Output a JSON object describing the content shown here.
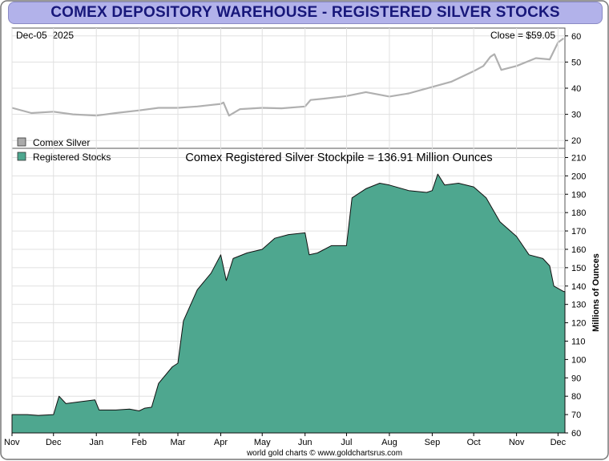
{
  "title": "COMEX DEPOSITORY WAREHOUSE - REGISTERED SILVER STOCKS",
  "footer": "world gold charts © www.goldchartsrus.com",
  "colors": {
    "banner_bg": "#b2b2ea",
    "banner_text": "#17177a",
    "silver_line": "#b0b0b0",
    "stocks_fill": "#4ea78f",
    "stocks_edge": "#111111",
    "grid": "#e0e0e0"
  },
  "chart_data": [
    {
      "type": "line",
      "date_label": "Dec-05  2025",
      "close_label": "Close = $59.05",
      "legend_label": "Comex Silver",
      "ylim": [
        17,
        63
      ],
      "yticks": [
        20,
        30,
        40,
        50,
        60
      ],
      "grid": true,
      "x": [
        "2024-11-01",
        "2024-11-15",
        "2024-12-01",
        "2024-12-15",
        "2025-01-01",
        "2025-01-15",
        "2025-02-01",
        "2025-02-15",
        "2025-03-01",
        "2025-03-15",
        "2025-04-01",
        "2025-04-03",
        "2025-04-07",
        "2025-04-15",
        "2025-05-01",
        "2025-05-15",
        "2025-06-01",
        "2025-06-05",
        "2025-06-15",
        "2025-07-01",
        "2025-07-15",
        "2025-08-01",
        "2025-08-15",
        "2025-09-01",
        "2025-09-15",
        "2025-10-01",
        "2025-10-08",
        "2025-10-13",
        "2025-10-16",
        "2025-10-21",
        "2025-11-01",
        "2025-11-15",
        "2025-11-25",
        "2025-12-01",
        "2025-12-05"
      ],
      "y": [
        32.5,
        30.5,
        31.0,
        30.0,
        29.5,
        30.5,
        31.5,
        32.5,
        32.5,
        33.0,
        34.0,
        34.5,
        29.5,
        32.0,
        32.5,
        32.3,
        33.0,
        35.5,
        36.0,
        37.0,
        38.5,
        36.8,
        38.0,
        40.5,
        42.5,
        46.5,
        48.5,
        52.0,
        53.0,
        47.0,
        48.5,
        51.5,
        51.0,
        57.5,
        59.05
      ]
    },
    {
      "type": "area",
      "title": "Comex Registered Silver Stockpile = 136.91 Million Ounces",
      "legend_label": "Registered Stocks",
      "ylabel": "Millions of Ounces",
      "ylim": [
        60,
        215
      ],
      "yticks": [
        60,
        70,
        80,
        90,
        100,
        110,
        120,
        130,
        140,
        150,
        160,
        170,
        180,
        190,
        200,
        210
      ],
      "xticks": [
        "Nov",
        "Dec",
        "Jan",
        "Feb",
        "Mar",
        "Apr",
        "May",
        "Jun",
        "Jul",
        "Aug",
        "Sep",
        "Oct",
        "Nov",
        "Dec"
      ],
      "grid": true,
      "x": [
        "2024-11-01",
        "2024-11-12",
        "2024-11-20",
        "2024-12-01",
        "2024-12-05",
        "2024-12-10",
        "2024-12-20",
        "2024-12-31",
        "2025-01-03",
        "2025-01-15",
        "2025-01-25",
        "2025-02-01",
        "2025-02-05",
        "2025-02-10",
        "2025-02-15",
        "2025-02-25",
        "2025-03-01",
        "2025-03-05",
        "2025-03-15",
        "2025-03-25",
        "2025-04-01",
        "2025-04-05",
        "2025-04-10",
        "2025-04-20",
        "2025-05-01",
        "2025-05-10",
        "2025-05-20",
        "2025-06-01",
        "2025-06-04",
        "2025-06-10",
        "2025-06-20",
        "2025-07-01",
        "2025-07-05",
        "2025-07-15",
        "2025-07-25",
        "2025-08-01",
        "2025-08-15",
        "2025-08-28",
        "2025-09-01",
        "2025-09-05",
        "2025-09-10",
        "2025-09-20",
        "2025-10-01",
        "2025-10-10",
        "2025-10-20",
        "2025-11-01",
        "2025-11-10",
        "2025-11-20",
        "2025-11-25",
        "2025-11-28",
        "2025-12-05"
      ],
      "y": [
        70,
        70,
        69.5,
        70,
        80,
        76,
        77,
        78,
        72.5,
        72.5,
        73,
        72,
        73.5,
        74,
        87,
        96,
        98,
        121,
        138,
        147,
        157,
        143,
        155,
        158,
        160,
        166,
        168,
        169,
        157,
        158,
        162,
        162,
        188,
        193,
        196,
        195,
        192,
        191,
        192,
        201,
        195,
        196,
        194,
        188,
        175,
        167,
        157,
        155,
        151,
        140,
        137
      ]
    }
  ]
}
